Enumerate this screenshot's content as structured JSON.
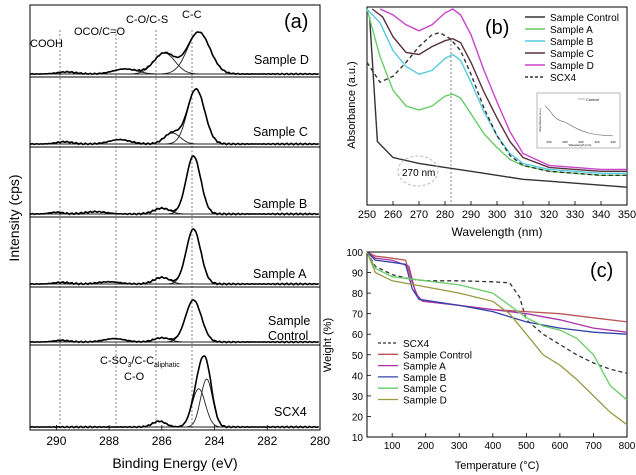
{
  "chart_data": [
    {
      "id": "a",
      "type": "line",
      "panel_label": "(a)",
      "xlabel": "Binding Energy (eV)",
      "ylabel": "Intensity (cps)",
      "xlim": [
        291,
        280
      ],
      "xticks": [
        290,
        288,
        286,
        284,
        282,
        280
      ],
      "reference_lines_eV": [
        289.8,
        287.6,
        286.1,
        284.8
      ],
      "peak_labels": [
        "COOH",
        "OCO/C=O",
        "C-O/C-S",
        "C-C"
      ],
      "scx4_labels": {
        "line1": "C-SO",
        "sub1": "3",
        "line2": "/C-C",
        "sub2": "aliphatic",
        "line3": "C-O"
      },
      "samples": [
        {
          "name": "Sample D",
          "components": [
            {
              "c": 284.6,
              "w": 0.85,
              "h": 1.0
            },
            {
              "c": 285.9,
              "w": 0.8,
              "h": 0.5
            },
            {
              "c": 287.4,
              "w": 0.9,
              "h": 0.12
            },
            {
              "c": 289.6,
              "w": 0.7,
              "h": 0.05
            }
          ]
        },
        {
          "name": "Sample C",
          "components": [
            {
              "c": 284.7,
              "w": 0.65,
              "h": 1.0
            },
            {
              "c": 285.6,
              "w": 0.6,
              "h": 0.2
            },
            {
              "c": 287.6,
              "w": 0.8,
              "h": 0.08
            },
            {
              "c": 289.7,
              "w": 0.6,
              "h": 0.04
            }
          ]
        },
        {
          "name": "Sample B",
          "components": [
            {
              "c": 284.8,
              "w": 0.55,
              "h": 1.0
            },
            {
              "c": 286.0,
              "w": 0.6,
              "h": 0.1
            },
            {
              "c": 288.5,
              "w": 0.8,
              "h": 0.04
            },
            {
              "c": 290.0,
              "w": 0.5,
              "h": 0.03
            }
          ]
        },
        {
          "name": "Sample A",
          "components": [
            {
              "c": 284.8,
              "w": 0.55,
              "h": 1.0
            },
            {
              "c": 286.0,
              "w": 0.6,
              "h": 0.12
            },
            {
              "c": 288.0,
              "w": 0.8,
              "h": 0.04
            },
            {
              "c": 289.8,
              "w": 0.6,
              "h": 0.03
            }
          ]
        },
        {
          "name_line1": "Sample",
          "name_line2": "Control",
          "components": [
            {
              "c": 284.8,
              "w": 0.6,
              "h": 1.0
            },
            {
              "c": 286.0,
              "w": 0.6,
              "h": 0.1
            },
            {
              "c": 287.8,
              "w": 0.8,
              "h": 0.08
            },
            {
              "c": 289.8,
              "w": 0.6,
              "h": 0.04
            }
          ]
        },
        {
          "name": "SCX4",
          "components": [
            {
              "c": 284.3,
              "w": 0.45,
              "h": 1.0
            },
            {
              "c": 284.6,
              "w": 0.5,
              "h": 0.8
            },
            {
              "c": 286.1,
              "w": 0.5,
              "h": 0.12
            }
          ]
        }
      ]
    },
    {
      "id": "b",
      "type": "line",
      "panel_label": "(b)",
      "xlabel": "Wavelength (nm)",
      "ylabel": "Absorbance (a.u.)",
      "xlim": [
        250,
        350
      ],
      "xticks": [
        250,
        260,
        270,
        280,
        290,
        300,
        310,
        320,
        330,
        340,
        350
      ],
      "annotation": "270 nm",
      "reference_line_nm": 283,
      "legend_position": "top-right",
      "series": [
        {
          "name": "Sample Control",
          "color": "#333333",
          "dashed": false,
          "points": [
            [
              251,
              0.95
            ],
            [
              254,
              0.32
            ],
            [
              260,
              0.24
            ],
            [
              270,
              0.21
            ],
            [
              280,
              0.19
            ],
            [
              290,
              0.17
            ],
            [
              300,
              0.15
            ],
            [
              310,
              0.13
            ],
            [
              320,
              0.12
            ],
            [
              330,
              0.11
            ],
            [
              340,
              0.1
            ],
            [
              350,
              0.09
            ]
          ]
        },
        {
          "name": "Sample A",
          "color": "#66cc66",
          "dashed": false,
          "points": [
            [
              250,
              0.99
            ],
            [
              255,
              0.75
            ],
            [
              260,
              0.58
            ],
            [
              265,
              0.5
            ],
            [
              270,
              0.48
            ],
            [
              275,
              0.5
            ],
            [
              280,
              0.55
            ],
            [
              283,
              0.56
            ],
            [
              286,
              0.54
            ],
            [
              290,
              0.46
            ],
            [
              295,
              0.36
            ],
            [
              300,
              0.29
            ],
            [
              305,
              0.23
            ],
            [
              310,
              0.2
            ],
            [
              320,
              0.17
            ],
            [
              330,
              0.16
            ],
            [
              340,
              0.15
            ],
            [
              350,
              0.15
            ]
          ]
        },
        {
          "name": "Sample B",
          "color": "#55ccdd",
          "dashed": false,
          "points": [
            [
              250,
              0.99
            ],
            [
              255,
              0.92
            ],
            [
              260,
              0.78
            ],
            [
              265,
              0.7
            ],
            [
              270,
              0.66
            ],
            [
              275,
              0.68
            ],
            [
              280,
              0.74
            ],
            [
              283,
              0.76
            ],
            [
              286,
              0.73
            ],
            [
              290,
              0.62
            ],
            [
              295,
              0.47
            ],
            [
              300,
              0.35
            ],
            [
              305,
              0.26
            ],
            [
              310,
              0.21
            ],
            [
              320,
              0.18
            ],
            [
              330,
              0.17
            ],
            [
              340,
              0.16
            ],
            [
              350,
              0.16
            ]
          ]
        },
        {
          "name": "Sample C",
          "color": "#5a3040",
          "dashed": false,
          "points": [
            [
              252,
              0.99
            ],
            [
              256,
              0.95
            ],
            [
              260,
              0.85
            ],
            [
              265,
              0.77
            ],
            [
              270,
              0.76
            ],
            [
              275,
              0.8
            ],
            [
              280,
              0.83
            ],
            [
              283,
              0.84
            ],
            [
              286,
              0.82
            ],
            [
              290,
              0.72
            ],
            [
              295,
              0.57
            ],
            [
              300,
              0.44
            ],
            [
              305,
              0.32
            ],
            [
              310,
              0.24
            ],
            [
              320,
              0.19
            ],
            [
              330,
              0.18
            ],
            [
              340,
              0.17
            ],
            [
              350,
              0.17
            ]
          ]
        },
        {
          "name": "Sample D",
          "color": "#cc44cc",
          "dashed": false,
          "points": [
            [
              255,
              0.99
            ],
            [
              260,
              0.96
            ],
            [
              265,
              0.91
            ],
            [
              270,
              0.88
            ],
            [
              275,
              0.91
            ],
            [
              280,
              0.97
            ],
            [
              283,
              0.99
            ],
            [
              286,
              0.96
            ],
            [
              290,
              0.86
            ],
            [
              295,
              0.68
            ],
            [
              300,
              0.52
            ],
            [
              305,
              0.37
            ],
            [
              310,
              0.26
            ],
            [
              320,
              0.2
            ],
            [
              330,
              0.19
            ],
            [
              340,
              0.18
            ],
            [
              350,
              0.18
            ]
          ]
        },
        {
          "name": "SCX4",
          "color": "#333333",
          "dashed": true,
          "points": [
            [
              250,
              0.72
            ],
            [
              255,
              0.62
            ],
            [
              260,
              0.65
            ],
            [
              265,
              0.72
            ],
            [
              270,
              0.8
            ],
            [
              275,
              0.86
            ],
            [
              278,
              0.87
            ],
            [
              282,
              0.84
            ],
            [
              286,
              0.78
            ],
            [
              290,
              0.66
            ],
            [
              295,
              0.49
            ],
            [
              300,
              0.35
            ],
            [
              305,
              0.25
            ],
            [
              310,
              0.2
            ],
            [
              320,
              0.17
            ],
            [
              330,
              0.16
            ],
            [
              340,
              0.15
            ],
            [
              350,
              0.15
            ]
          ]
        }
      ],
      "inset": {
        "legend_label": "Control",
        "ylabel": "Absorbance (a.u.)",
        "xlabel": "Wavelength (nm)",
        "xticks": [
          "260",
          "280",
          "300",
          "320",
          "340"
        ],
        "points": [
          [
            255,
            0.9
          ],
          [
            260,
            0.8
          ],
          [
            265,
            0.65
          ],
          [
            270,
            0.55
          ],
          [
            275,
            0.5
          ],
          [
            280,
            0.47
          ],
          [
            290,
            0.35
          ],
          [
            300,
            0.25
          ],
          [
            310,
            0.18
          ],
          [
            320,
            0.14
          ],
          [
            330,
            0.12
          ],
          [
            340,
            0.11
          ]
        ]
      }
    },
    {
      "id": "c",
      "type": "line",
      "panel_label": "(c)",
      "xlabel": "Temperature (°C)",
      "ylabel": "Weight (%)",
      "xlim": [
        25,
        800
      ],
      "ylim": [
        10,
        100
      ],
      "xticks": [
        100,
        200,
        300,
        400,
        500,
        600,
        700,
        800
      ],
      "yticks": [
        10,
        20,
        30,
        40,
        50,
        60,
        70,
        80,
        90,
        100
      ],
      "legend_position": "middle-left",
      "series": [
        {
          "name": "SCX4",
          "color": "#333333",
          "dashed": true,
          "points": [
            [
              25,
              100
            ],
            [
              50,
              93
            ],
            [
              100,
              89
            ],
            [
              150,
              87
            ],
            [
              200,
              86
            ],
            [
              300,
              86
            ],
            [
              400,
              85.5
            ],
            [
              450,
              85
            ],
            [
              480,
              78
            ],
            [
              500,
              67
            ],
            [
              550,
              60
            ],
            [
              600,
              55
            ],
            [
              650,
              50
            ],
            [
              700,
              46
            ],
            [
              750,
              43
            ],
            [
              800,
              41
            ]
          ]
        },
        {
          "name": "Sample Control",
          "color": "#bb5555",
          "dashed": false,
          "points": [
            [
              25,
              100
            ],
            [
              50,
              98
            ],
            [
              100,
              97
            ],
            [
              140,
              96
            ],
            [
              160,
              85
            ],
            [
              180,
              77
            ],
            [
              200,
              76
            ],
            [
              300,
              74
            ],
            [
              400,
              72
            ],
            [
              500,
              71
            ],
            [
              600,
              70
            ],
            [
              700,
              68
            ],
            [
              800,
              66
            ]
          ]
        },
        {
          "name": "Sample A",
          "color": "#aa33aa",
          "dashed": false,
          "points": [
            [
              25,
              100
            ],
            [
              50,
              97
            ],
            [
              100,
              96
            ],
            [
              150,
              93
            ],
            [
              170,
              80
            ],
            [
              190,
              76
            ],
            [
              300,
              74
            ],
            [
              400,
              72
            ],
            [
              500,
              70
            ],
            [
              600,
              67
            ],
            [
              700,
              63
            ],
            [
              800,
              61
            ]
          ]
        },
        {
          "name": "Sample B",
          "color": "#3344aa",
          "dashed": false,
          "points": [
            [
              25,
              100
            ],
            [
              50,
              96
            ],
            [
              100,
              95
            ],
            [
              140,
              94
            ],
            [
              160,
              82
            ],
            [
              180,
              77
            ],
            [
              300,
              74
            ],
            [
              400,
              71
            ],
            [
              500,
              66
            ],
            [
              600,
              63
            ],
            [
              700,
              61
            ],
            [
              800,
              60
            ]
          ]
        },
        {
          "name": "Sample C",
          "color": "#66cc66",
          "dashed": false,
          "points": [
            [
              25,
              100
            ],
            [
              50,
              92
            ],
            [
              100,
              88
            ],
            [
              200,
              86
            ],
            [
              300,
              84
            ],
            [
              400,
              80
            ],
            [
              450,
              74
            ],
            [
              500,
              68
            ],
            [
              550,
              64
            ],
            [
              600,
              62
            ],
            [
              650,
              58
            ],
            [
              700,
              50
            ],
            [
              750,
              35
            ],
            [
              800,
              28
            ]
          ]
        },
        {
          "name": "Sample D",
          "color": "#999944",
          "dashed": false,
          "points": [
            [
              25,
              100
            ],
            [
              50,
              90
            ],
            [
              100,
              86
            ],
            [
              200,
              83
            ],
            [
              300,
              80
            ],
            [
              400,
              76
            ],
            [
              450,
              70
            ],
            [
              500,
              60
            ],
            [
              550,
              50
            ],
            [
              600,
              45
            ],
            [
              650,
              38
            ],
            [
              700,
              30
            ],
            [
              750,
              22
            ],
            [
              800,
              16
            ]
          ]
        }
      ]
    }
  ]
}
